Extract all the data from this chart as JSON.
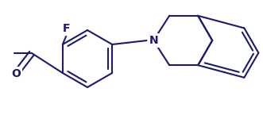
{
  "bg_color": "#ffffff",
  "line_color": "#1a1a6e",
  "line_width": 1.5,
  "font_size": 10,
  "figsize": [
    3.31,
    1.5
  ],
  "dpi": 100,
  "xlim": [
    0,
    331
  ],
  "ylim": [
    0,
    150
  ]
}
